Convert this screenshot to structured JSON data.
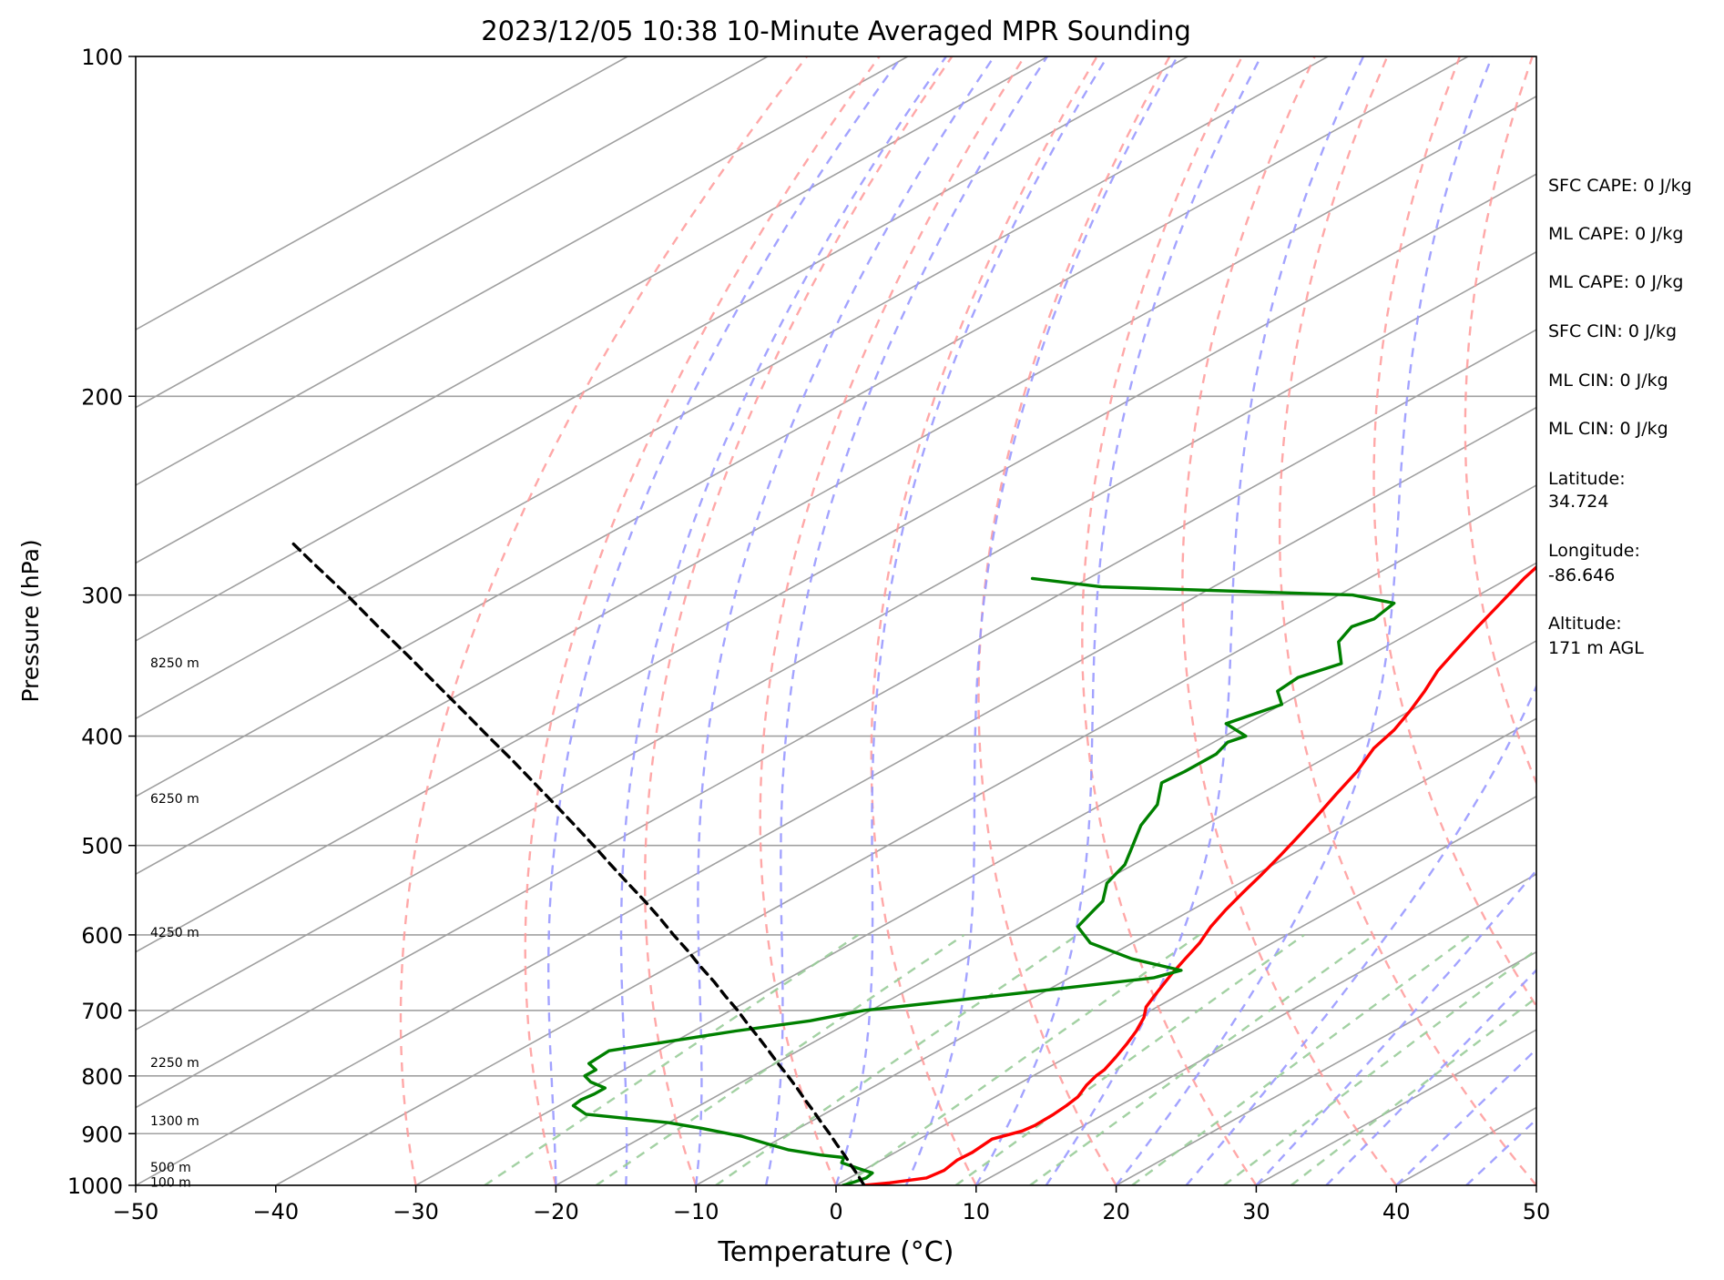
{
  "chart_data": {
    "type": "line",
    "title": "2023/12/05 10:38 10-Minute Averaged MPR Sounding",
    "xlabel": "Temperature (°C)",
    "ylabel": "Pressure (hPa)",
    "xlim": [
      -50,
      50
    ],
    "ylim": [
      1000,
      100
    ],
    "y_scale": "log",
    "skew": "skew-T",
    "grid": true,
    "x_ticks": [
      -50,
      -40,
      -30,
      -20,
      -10,
      0,
      10,
      20,
      30,
      40,
      50
    ],
    "y_ticks": [
      100,
      200,
      300,
      400,
      500,
      600,
      700,
      800,
      900,
      1000
    ],
    "colors": {
      "temperature": "#ff0000",
      "dewpoint": "#008000",
      "parcel": "#000000",
      "dry_adiabats": "#ff9999",
      "moist_adiabats": "#9999ff",
      "mixing_ratio": "#99cc99",
      "isotherms": "#a0a0a0"
    },
    "series": [
      {
        "key": "temperature",
        "pressure": [
          1000,
          995,
          985,
          970,
          950,
          935,
          910,
          895,
          885,
          865,
          850,
          835,
          815,
          800,
          790,
          770,
          750,
          730,
          710,
          695,
          680,
          665,
          650,
          630,
          610,
          590,
          570,
          550,
          530,
          510,
          490,
          470,
          450,
          430,
          410,
          395,
          380,
          365,
          350,
          335,
          320,
          305,
          290,
          275,
          262
        ],
        "values": [
          2,
          3.5,
          5.5,
          5.8,
          5.4,
          5.5,
          5.2,
          6.3,
          6.5,
          6.4,
          6.2,
          5.9,
          5.0,
          4.5,
          4.3,
          3.5,
          2.6,
          1.6,
          0.4,
          -0.8,
          -1.6,
          -2.4,
          -3.2,
          -4.2,
          -5.2,
          -6.5,
          -7.6,
          -8.6,
          -9.6,
          -10.7,
          -11.9,
          -13.2,
          -14.6,
          -16.0,
          -17.8,
          -18.7,
          -20.0,
          -21.5,
          -23.2,
          -24.6,
          -26.0,
          -27.4,
          -28.9,
          -30.2,
          -32.0
        ]
      },
      {
        "key": "dewpoint",
        "pressure": [
          1000,
          995,
          985,
          975,
          970,
          955,
          945,
          940,
          930,
          920,
          905,
          890,
          880,
          865,
          850,
          840,
          830,
          820,
          810,
          800,
          790,
          780,
          760,
          730,
          715,
          700,
          685,
          670,
          655,
          645,
          630,
          610,
          590,
          570,
          560,
          540,
          520,
          500,
          480,
          460,
          440,
          430,
          415,
          405,
          400,
          390,
          375,
          365,
          355,
          345,
          330,
          320,
          315,
          305,
          300,
          295,
          290
        ],
        "values": [
          0.5,
          0.8,
          1.2,
          1.0,
          0.1,
          -2.5,
          -3.0,
          -5.0,
          -8.0,
          -10.0,
          -13.0,
          -17.0,
          -20.0,
          -27.0,
          -29.0,
          -29.2,
          -29.0,
          -29.0,
          -30.8,
          -32.0,
          -32.0,
          -33.3,
          -33.5,
          -27.0,
          -23.0,
          -20.5,
          -15.0,
          -9.5,
          -4.0,
          -3.0,
          -8.0,
          -13.0,
          -16.0,
          -17.0,
          -17.5,
          -19.5,
          -20.6,
          -22.5,
          -24.5,
          -26.0,
          -28.5,
          -28.3,
          -28.3,
          -29.0,
          -28.5,
          -31.5,
          -30.0,
          -32.0,
          -32.3,
          -31.0,
          -34.0,
          -35.0,
          -34.4,
          -35.0,
          -39.0,
          -58.0,
          -64.0
        ]
      },
      {
        "key": "parcel",
        "pressure": [
          1000,
          980,
          960,
          940,
          920,
          900,
          880,
          860,
          840,
          820,
          800,
          780,
          760,
          740,
          720,
          700,
          680,
          660,
          640,
          620,
          600,
          580,
          560,
          540,
          520,
          500,
          480,
          460,
          440,
          420,
          400,
          380,
          360,
          340,
          320,
          300,
          280,
          270
        ],
        "values": [
          2.0,
          0.3,
          -1.5,
          -3.3,
          -5.2,
          -7.1,
          -9.1,
          -11.1,
          -13.2,
          -15.3,
          -17.5,
          -19.8,
          -22.1,
          -24.5,
          -27.0,
          -29.5,
          -32.2,
          -34.9,
          -37.8,
          -40.7,
          -43.8,
          -46.9,
          -50.2,
          -53.7,
          -57.3,
          -61.0,
          -64.9,
          -69.0,
          -73.3,
          -77.8,
          -82.6,
          -87.6,
          -92.9,
          -98.5,
          -104.5,
          -110.8,
          -117.7,
          -121.3
        ]
      }
    ],
    "height_labels": [
      {
        "text": "8250 m",
        "pressure": 345
      },
      {
        "text": "6250 m",
        "pressure": 455
      },
      {
        "text": "4250 m",
        "pressure": 598
      },
      {
        "text": "2250 m",
        "pressure": 780
      },
      {
        "text": "1300 m",
        "pressure": 878
      },
      {
        "text": "500 m",
        "pressure": 965
      },
      {
        "text": "100 m",
        "pressure": 995
      }
    ]
  },
  "info_panel": {
    "sfc_cape": "SFC CAPE: 0 J/kg",
    "ml_cape": "ML CAPE: 0 J/kg",
    "ml_cape_2": "ML CAPE: 0 J/kg",
    "sfc_cin": "SFC CIN: 0 J/kg",
    "ml_cin": "ML CIN: 0 J/kg",
    "ml_cin_2": "ML CIN: 0 J/kg",
    "latitude_label": "Latitude:",
    "latitude_value": "34.724",
    "longitude_label": "Longitude:",
    "longitude_value": "-86.646",
    "altitude_label": "Altitude:",
    "altitude_value": "171 m AGL"
  }
}
